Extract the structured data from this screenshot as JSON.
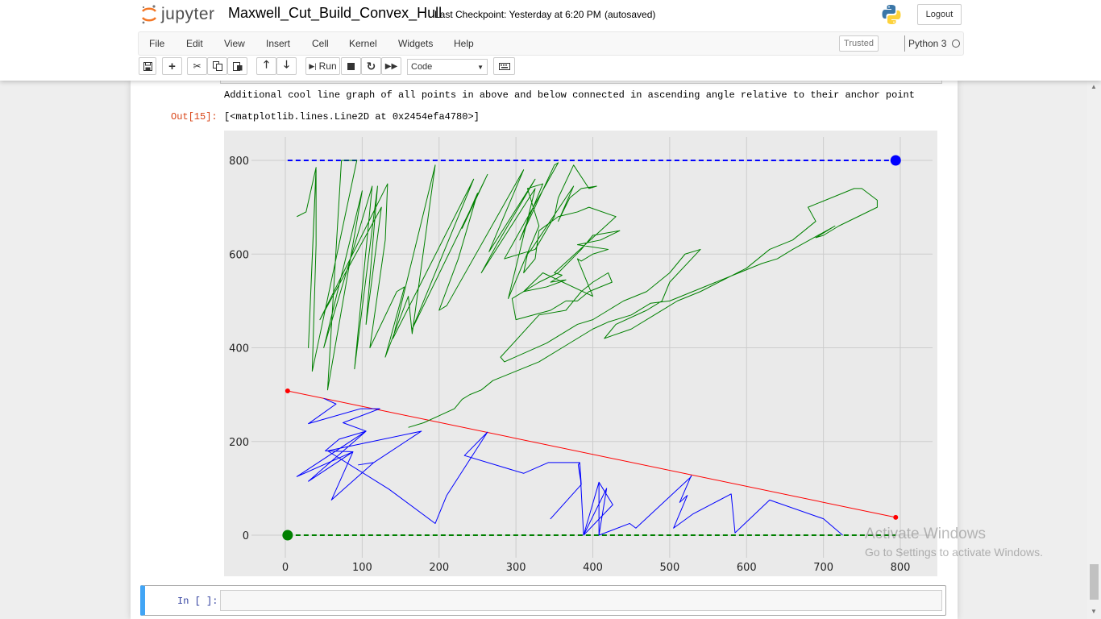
{
  "header": {
    "logo_text": "jupyter",
    "notebook_title": "Maxwell_Cut_Build_Convex_Hull",
    "checkpoint": "Last Checkpoint: Yesterday at 6:20 PM",
    "autosave": "(autosaved)",
    "logout_label": "Logout"
  },
  "menu": {
    "items": [
      "File",
      "Edit",
      "View",
      "Insert",
      "Cell",
      "Kernel",
      "Widgets",
      "Help"
    ],
    "trusted": "Trusted",
    "kernel": "Python 3"
  },
  "toolbar": {
    "run_label": "Run",
    "cell_type": "Code",
    "icons": [
      "save-icon",
      "plus-icon",
      "cut-icon",
      "copy-icon",
      "paste-icon",
      "arrow-up-icon",
      "arrow-down-icon",
      "run-icon",
      "stop-icon",
      "restart-icon",
      "fast-forward-icon",
      "keyboard-icon"
    ]
  },
  "cells": {
    "stream_output": "Additional cool line graph of all points in above and below connected in ascending angle relative to their anchor point",
    "out_prompt": "Out[15]:",
    "out_text": "[<matplotlib.lines.Line2D at 0x2454efa4780>]",
    "in_prompt": "In [ ]:"
  },
  "watermark": {
    "line1": "Activate Windows",
    "line2": "Go to Settings to activate Windows."
  },
  "chart_data": {
    "type": "line",
    "xlim": [
      -40,
      845
    ],
    "ylim": [
      -90,
      865
    ],
    "xticks": [
      0,
      100,
      200,
      300,
      400,
      500,
      600,
      700,
      800
    ],
    "yticks": [
      0,
      200,
      400,
      600,
      800
    ],
    "grid": true,
    "background": "#eaeaea",
    "series": [
      {
        "color": "#ff0000",
        "kind": "line-endpoints",
        "points": [
          [
            3,
            308
          ],
          [
            794,
            38
          ]
        ]
      },
      {
        "color": "#0000ff",
        "kind": "dashed-anchor",
        "points": [
          [
            3,
            800
          ],
          [
            794,
            800
          ]
        ],
        "marker_at": [
          794,
          800
        ]
      },
      {
        "color": "#008000",
        "kind": "dashed-anchor",
        "points": [
          [
            3,
            0
          ],
          [
            794,
            0
          ]
        ],
        "marker_at": [
          3,
          0
        ]
      },
      {
        "color": "#0000ff",
        "kind": "polyline",
        "points": [
          [
            50,
            292
          ],
          [
            66,
            280
          ],
          [
            30,
            238
          ],
          [
            98,
            270
          ],
          [
            123,
            270
          ],
          [
            75,
            240
          ],
          [
            105,
            222
          ],
          [
            70,
            205
          ],
          [
            52,
            180
          ],
          [
            88,
            178
          ],
          [
            15,
            125
          ],
          [
            105,
            222
          ],
          [
            30,
            115
          ],
          [
            88,
            178
          ],
          [
            60,
            75
          ],
          [
            115,
            155
          ],
          [
            95,
            150
          ],
          [
            115,
            155
          ],
          [
            177,
            222
          ],
          [
            55,
            180
          ],
          [
            135,
            98
          ],
          [
            195,
            25
          ],
          [
            210,
            85
          ],
          [
            263,
            220
          ],
          [
            233,
            170
          ],
          [
            310,
            132
          ],
          [
            342,
            155
          ],
          [
            383,
            155
          ],
          [
            385,
            108
          ],
          [
            345,
            35
          ],
          [
            385,
            108
          ],
          [
            381,
            150
          ],
          [
            383,
            155
          ],
          [
            388,
            0
          ],
          [
            408,
            113
          ],
          [
            408,
            0
          ],
          [
            418,
            100
          ],
          [
            388,
            0
          ],
          [
            426,
            65
          ],
          [
            408,
            113
          ],
          [
            408,
            0
          ],
          [
            448,
            25
          ],
          [
            456,
            15
          ],
          [
            528,
            125
          ],
          [
            528,
            127
          ],
          [
            513,
            70
          ],
          [
            523,
            85
          ],
          [
            505,
            15
          ],
          [
            530,
            45
          ],
          [
            580,
            88
          ],
          [
            585,
            5
          ],
          [
            630,
            75
          ],
          [
            700,
            35
          ],
          [
            725,
            0
          ]
        ]
      },
      {
        "color": "#008000",
        "kind": "polyline",
        "points": [
          [
            15,
            680
          ],
          [
            27,
            690
          ],
          [
            40,
            785
          ],
          [
            30,
            400
          ],
          [
            40,
            780
          ],
          [
            40,
            620
          ],
          [
            35,
            350
          ],
          [
            93,
            800
          ],
          [
            73,
            800
          ],
          [
            55,
            310
          ],
          [
            100,
            735
          ],
          [
            50,
            400
          ],
          [
            113,
            745
          ],
          [
            90,
            355
          ],
          [
            120,
            745
          ],
          [
            105,
            450
          ],
          [
            125,
            700
          ],
          [
            45,
            460
          ],
          [
            133,
            750
          ],
          [
            130,
            630
          ],
          [
            110,
            400
          ],
          [
            145,
            520
          ],
          [
            155,
            530
          ],
          [
            130,
            380
          ],
          [
            160,
            510
          ],
          [
            165,
            430
          ],
          [
            195,
            790
          ],
          [
            140,
            420
          ],
          [
            245,
            760
          ],
          [
            165,
            440
          ],
          [
            263,
            770
          ],
          [
            230,
            655
          ],
          [
            250,
            730
          ],
          [
            225,
            590
          ],
          [
            200,
            480
          ],
          [
            210,
            490
          ],
          [
            310,
            780
          ],
          [
            265,
            605
          ],
          [
            325,
            760
          ],
          [
            275,
            620
          ],
          [
            255,
            560
          ],
          [
            325,
            740
          ],
          [
            290,
            505
          ],
          [
            330,
            660
          ],
          [
            315,
            740
          ],
          [
            335,
            750
          ],
          [
            305,
            630
          ],
          [
            350,
            790
          ],
          [
            355,
            795
          ],
          [
            285,
            590
          ],
          [
            325,
            610
          ],
          [
            350,
            680
          ],
          [
            355,
            720
          ],
          [
            375,
            790
          ],
          [
            395,
            740
          ],
          [
            405,
            745
          ],
          [
            385,
            740
          ],
          [
            370,
            720
          ],
          [
            355,
            670
          ],
          [
            375,
            745
          ],
          [
            320,
            610
          ],
          [
            315,
            600
          ],
          [
            310,
            560
          ],
          [
            325,
            590
          ],
          [
            330,
            650
          ],
          [
            355,
            680
          ],
          [
            380,
            690
          ],
          [
            395,
            700
          ],
          [
            430,
            680
          ],
          [
            350,
            560
          ],
          [
            360,
            555
          ],
          [
            345,
            540
          ],
          [
            365,
            545
          ],
          [
            340,
            530
          ],
          [
            310,
            520
          ],
          [
            335,
            560
          ],
          [
            400,
            510
          ],
          [
            380,
            590
          ],
          [
            385,
            585
          ],
          [
            400,
            600
          ],
          [
            420,
            610
          ],
          [
            380,
            620
          ],
          [
            410,
            630
          ],
          [
            435,
            650
          ],
          [
            400,
            640
          ],
          [
            385,
            610
          ],
          [
            355,
            560
          ],
          [
            330,
            540
          ],
          [
            295,
            505
          ],
          [
            300,
            460
          ],
          [
            345,
            480
          ],
          [
            365,
            500
          ],
          [
            380,
            500
          ],
          [
            395,
            520
          ],
          [
            425,
            540
          ],
          [
            420,
            560
          ],
          [
            400,
            540
          ],
          [
            385,
            520
          ],
          [
            365,
            480
          ],
          [
            330,
            470
          ],
          [
            280,
            380
          ],
          [
            285,
            370
          ],
          [
            340,
            410
          ],
          [
            380,
            450
          ],
          [
            400,
            460
          ],
          [
            420,
            480
          ],
          [
            440,
            500
          ],
          [
            470,
            520
          ],
          [
            500,
            560
          ],
          [
            520,
            600
          ],
          [
            540,
            610
          ],
          [
            500,
            540
          ],
          [
            490,
            500
          ],
          [
            470,
            480
          ],
          [
            430,
            450
          ],
          [
            415,
            420
          ],
          [
            450,
            440
          ],
          [
            480,
            470
          ],
          [
            510,
            500
          ],
          [
            540,
            520
          ],
          [
            570,
            545
          ],
          [
            600,
            570
          ],
          [
            630,
            610
          ],
          [
            660,
            630
          ],
          [
            690,
            670
          ],
          [
            680,
            700
          ],
          [
            740,
            740
          ],
          [
            750,
            740
          ],
          [
            770,
            715
          ],
          [
            770,
            700
          ],
          [
            720,
            660
          ],
          [
            700,
            640
          ],
          [
            690,
            635
          ],
          [
            715,
            660
          ],
          [
            660,
            610
          ],
          [
            640,
            590
          ],
          [
            620,
            580
          ],
          [
            590,
            560
          ],
          [
            560,
            540
          ],
          [
            500,
            500
          ],
          [
            475,
            495
          ],
          [
            450,
            470
          ],
          [
            420,
            455
          ],
          [
            400,
            440
          ],
          [
            380,
            420
          ],
          [
            360,
            400
          ],
          [
            330,
            370
          ],
          [
            300,
            350
          ],
          [
            270,
            330
          ],
          [
            255,
            310
          ],
          [
            240,
            300
          ],
          [
            230,
            290
          ],
          [
            220,
            270
          ],
          [
            200,
            255
          ],
          [
            180,
            240
          ],
          [
            160,
            230
          ]
        ]
      }
    ]
  }
}
